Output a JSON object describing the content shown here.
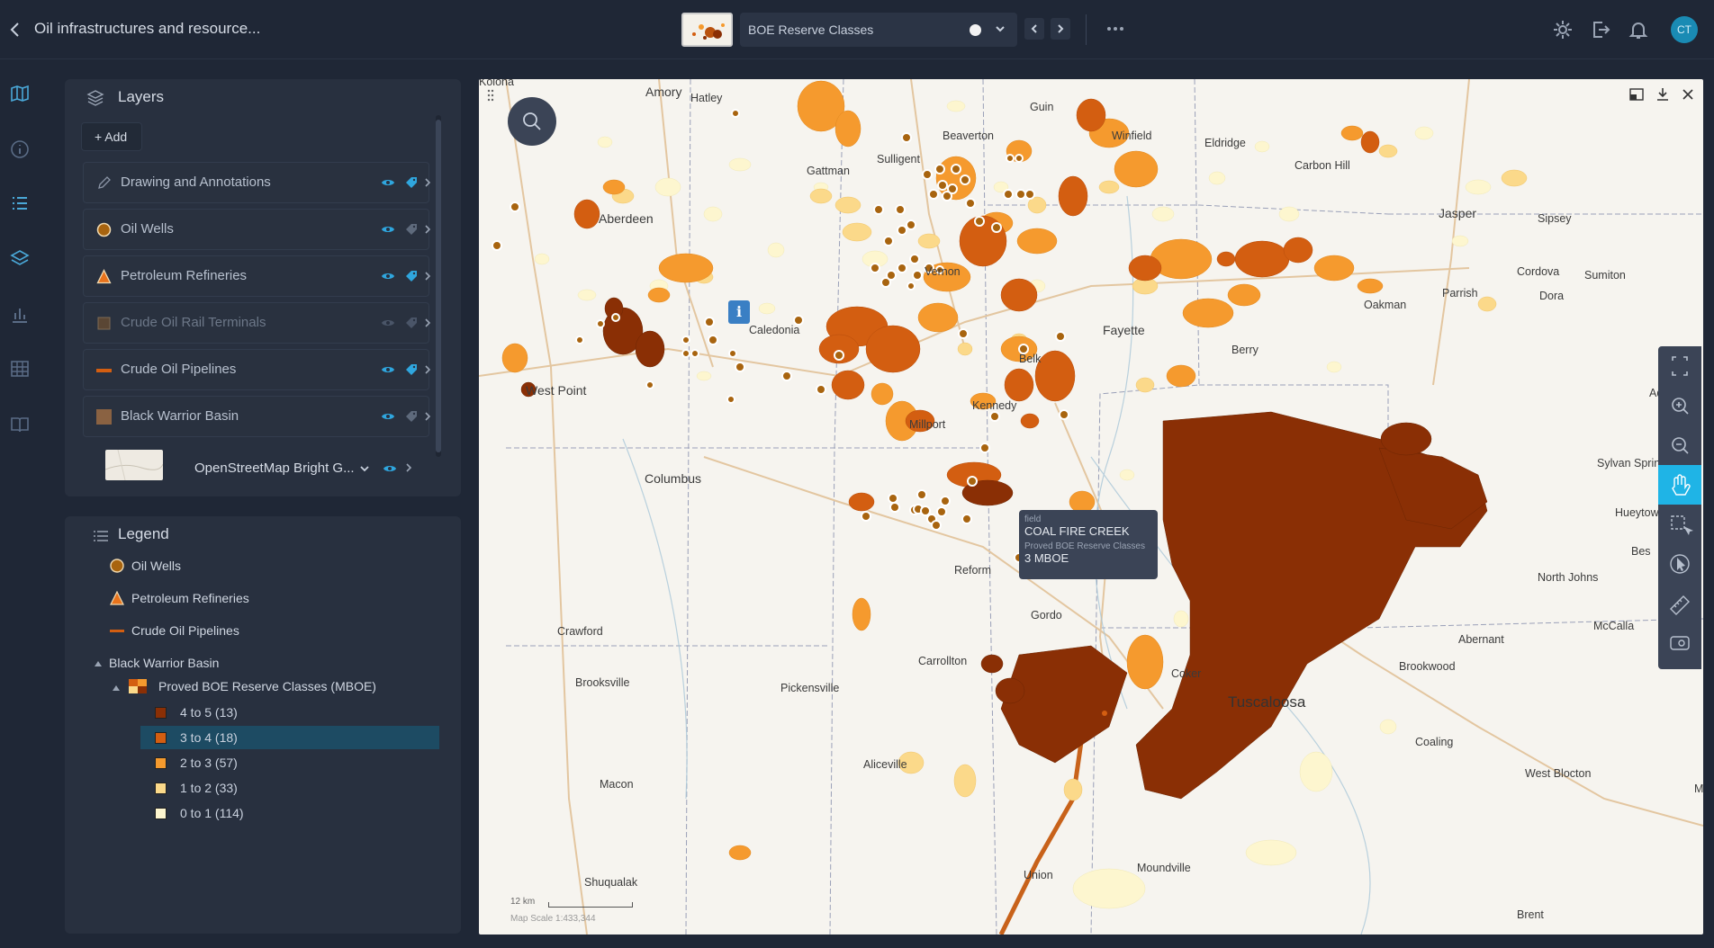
{
  "app": {
    "title": "Oil infrastructures and resource...",
    "current_layer": "BOE Reserve Classes",
    "user_initials": "CT"
  },
  "layers_panel": {
    "title": "Layers",
    "add_label": "+ Add",
    "items": [
      {
        "name": "Drawing and Annotations",
        "symbol": "pencil-icon",
        "visible": true
      },
      {
        "name": "Oil Wells",
        "symbol": "circle-marker",
        "visible": true
      },
      {
        "name": "Petroleum Refineries",
        "symbol": "triangle-marker",
        "visible": true
      },
      {
        "name": "Crude Oil Rail Terminals",
        "symbol": "square-marker",
        "visible": false
      },
      {
        "name": "Crude Oil Pipelines",
        "symbol": "line-marker",
        "visible": true
      },
      {
        "name": "Black Warrior Basin",
        "symbol": "area-marker",
        "visible": true
      }
    ],
    "basemap": "OpenStreetMap Bright G..."
  },
  "legend": {
    "title": "Legend",
    "items": [
      "Oil Wells",
      "Petroleum Refineries",
      "Crude Oil Pipelines"
    ],
    "group": "Black Warrior Basin",
    "subgroup": "Proved BOE Reserve Classes (MBOE)",
    "classes": [
      {
        "label": "4 to 5 (13)",
        "color": "#8a2f05"
      },
      {
        "label": "3 to 4 (18)",
        "color": "#d35e11"
      },
      {
        "label": "2 to 3 (57)",
        "color": "#f59a2e"
      },
      {
        "label": "1 to 2 (33)",
        "color": "#fbd98a"
      },
      {
        "label": "0 to 1 (114)",
        "color": "#fdf6cf"
      }
    ],
    "selected_class": "3 to 4 (18)"
  },
  "tooltip": {
    "field_key": "field",
    "field_value": "COAL FIRE CREEK",
    "class_key": "Proved BOE Reserve Classes",
    "class_value": "3 MBOE"
  },
  "map": {
    "scale_text": "12 km",
    "map_scale": "Map Scale 1:433,344",
    "places": [
      "Amory",
      "Hatley",
      "Guin",
      "Winfield",
      "Eldridge",
      "Carbon Hill",
      "Beaverton",
      "Sulligent",
      "Gattman",
      "Aberdeen",
      "Vernon",
      "Jasper",
      "Sipsey",
      "Cordova",
      "Sumiton",
      "Parrish",
      "Dora",
      "Oakman",
      "Caledonia",
      "Fayette",
      "Berry",
      "West Point",
      "Belk",
      "Kennedy",
      "Millport",
      "Columbus",
      "Reform",
      "Gordo",
      "Crawford",
      "Carrollton",
      "Brooksville",
      "Pickensville",
      "Aliceville",
      "Macon",
      "Shuqualak",
      "Union",
      "Moundville",
      "Brent",
      "Tuscaloosa",
      "Coker",
      "Coaling",
      "Brookwood",
      "Abernant",
      "North Johns",
      "McCalla",
      "West Blocton",
      "Sylvan Spring",
      "Hueytown",
      "Bes",
      "Ada",
      "Kolona",
      "M"
    ]
  },
  "colors": {
    "accent": "#1fb4e6",
    "bg": "#1f2736",
    "panel": "#28303f"
  }
}
